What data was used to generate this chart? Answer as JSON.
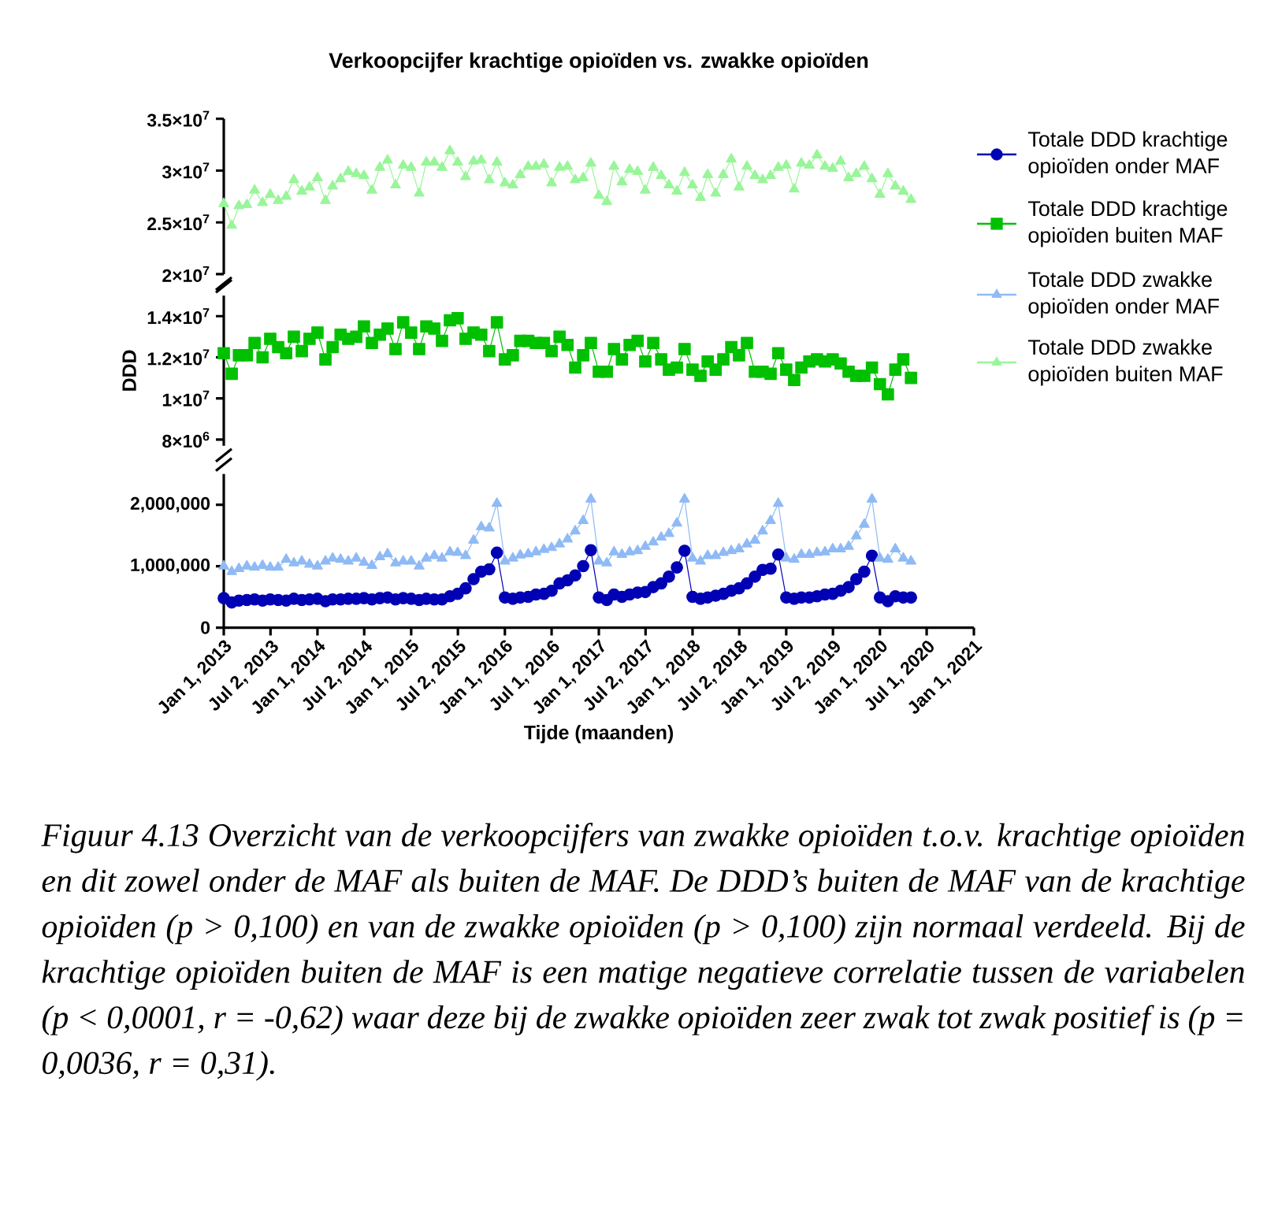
{
  "chart_data": [
    {
      "type": "line",
      "title": "Verkoopcijfer krachtige opioïden vs. zwakke opioïden",
      "legend": "right",
      "tick_labels": "y",
      "x": [
        "2013-01",
        "2013-02",
        "2013-03",
        "2013-04",
        "2013-05",
        "2013-06",
        "2013-07",
        "2013-08",
        "2013-09",
        "2013-10",
        "2013-11",
        "2013-12",
        "2014-01",
        "2014-02",
        "2014-03",
        "2014-04",
        "2014-05",
        "2014-06",
        "2014-07",
        "2014-08",
        "2014-09",
        "2014-10",
        "2014-11",
        "2014-12",
        "2015-01",
        "2015-02",
        "2015-03",
        "2015-04",
        "2015-05",
        "2015-06",
        "2015-07",
        "2015-08",
        "2015-09",
        "2015-10",
        "2015-11",
        "2015-12",
        "2016-01",
        "2016-02",
        "2016-03",
        "2016-04",
        "2016-05",
        "2016-06",
        "2016-07",
        "2016-08",
        "2016-09",
        "2016-10",
        "2016-11",
        "2016-12",
        "2017-01",
        "2017-02",
        "2017-03",
        "2017-04",
        "2017-05",
        "2017-06",
        "2017-07",
        "2017-08",
        "2017-09",
        "2017-10",
        "2017-11",
        "2017-12",
        "2018-01",
        "2018-02",
        "2018-03",
        "2018-04",
        "2018-05",
        "2018-06",
        "2018-07",
        "2018-08",
        "2018-09",
        "2018-10",
        "2018-11",
        "2018-12",
        "2019-01",
        "2019-02",
        "2019-03",
        "2019-04",
        "2019-05",
        "2019-06",
        "2019-07",
        "2019-08",
        "2019-09",
        "2019-10",
        "2019-11",
        "2019-12",
        "2020-01",
        "2020-02",
        "2020-03",
        "2020-04",
        "2020-05"
      ],
      "xlim": [
        "2013-01-01",
        "2021-01-01"
      ],
      "ylim": [
        20000000,
        35000000
      ],
      "yticks": [
        {
          "value": 20000000,
          "label": "2×10$^{7}$"
        },
        {
          "value": 25000000,
          "label": "2.5×10$^{7}$"
        },
        {
          "value": 30000000,
          "label": "3×10$^{7}$"
        },
        {
          "value": 35000000,
          "label": "3.5×10$^{7}$"
        }
      ],
      "series": [
        {
          "name": "Totale DDD zwakke opioïden buiten MAF",
          "color": "#99f599",
          "marker": "triangle",
          "values": [
            26800000,
            24700000,
            26600000,
            26700000,
            28100000,
            26900000,
            27700000,
            27100000,
            27500000,
            29100000,
            28000000,
            28400000,
            29300000,
            27100000,
            28500000,
            29200000,
            29900000,
            29700000,
            29500000,
            28100000,
            30300000,
            31000000,
            28600000,
            30500000,
            30300000,
            27800000,
            30800000,
            30800000,
            30300000,
            31900000,
            30800000,
            29400000,
            30900000,
            31000000,
            29100000,
            30800000,
            28800000,
            28600000,
            29600000,
            30400000,
            30400000,
            30600000,
            28800000,
            30300000,
            30400000,
            29100000,
            29300000,
            30700000,
            27600000,
            27000000,
            30400000,
            28900000,
            30100000,
            29900000,
            28100000,
            30300000,
            29500000,
            28600000,
            28000000,
            29800000,
            28600000,
            27400000,
            29600000,
            27800000,
            29600000,
            31100000,
            28400000,
            30400000,
            29500000,
            29100000,
            29500000,
            30300000,
            30500000,
            28200000,
            30700000,
            30500000,
            31500000,
            30400000,
            30200000,
            30900000,
            29300000,
            29700000,
            30400000,
            29200000,
            27700000,
            29700000,
            28500000,
            28000000,
            27200000
          ]
        }
      ]
    },
    {
      "type": "line",
      "ylabel": "DDD",
      "legend": "right",
      "tick_labels": "y",
      "x": [
        "2013-01",
        "2013-02",
        "2013-03",
        "2013-04",
        "2013-05",
        "2013-06",
        "2013-07",
        "2013-08",
        "2013-09",
        "2013-10",
        "2013-11",
        "2013-12",
        "2014-01",
        "2014-02",
        "2014-03",
        "2014-04",
        "2014-05",
        "2014-06",
        "2014-07",
        "2014-08",
        "2014-09",
        "2014-10",
        "2014-11",
        "2014-12",
        "2015-01",
        "2015-02",
        "2015-03",
        "2015-04",
        "2015-05",
        "2015-06",
        "2015-07",
        "2015-08",
        "2015-09",
        "2015-10",
        "2015-11",
        "2015-12",
        "2016-01",
        "2016-02",
        "2016-03",
        "2016-04",
        "2016-05",
        "2016-06",
        "2016-07",
        "2016-08",
        "2016-09",
        "2016-10",
        "2016-11",
        "2016-12",
        "2017-01",
        "2017-02",
        "2017-03",
        "2017-04",
        "2017-05",
        "2017-06",
        "2017-07",
        "2017-08",
        "2017-09",
        "2017-10",
        "2017-11",
        "2017-12",
        "2018-01",
        "2018-02",
        "2018-03",
        "2018-04",
        "2018-05",
        "2018-06",
        "2018-07",
        "2018-08",
        "2018-09",
        "2018-10",
        "2018-11",
        "2018-12",
        "2019-01",
        "2019-02",
        "2019-03",
        "2019-04",
        "2019-05",
        "2019-06",
        "2019-07",
        "2019-08",
        "2019-09",
        "2019-10",
        "2019-11",
        "2019-12",
        "2020-01",
        "2020-02",
        "2020-03",
        "2020-04",
        "2020-05"
      ],
      "xlim": [
        "2013-01-01",
        "2021-01-01"
      ],
      "ylim": [
        7700000,
        15000000
      ],
      "yticks": [
        {
          "value": 8000000,
          "label": "8×10$^{6}$"
        },
        {
          "value": 10000000,
          "label": "1×10$^{7}$"
        },
        {
          "value": 12000000,
          "label": "1.2×10$^{7}$"
        },
        {
          "value": 14000000,
          "label": "1.4×10$^{7}$"
        }
      ],
      "series": [
        {
          "name": "Totale DDD krachtige opioïden buiten MAF",
          "color": "#00c000",
          "marker": "square",
          "values": [
            12200000,
            11200000,
            12100000,
            12100000,
            12700000,
            12000000,
            12900000,
            12500000,
            12200000,
            13000000,
            12300000,
            12900000,
            13200000,
            11900000,
            12500000,
            13100000,
            12900000,
            13000000,
            13500000,
            12700000,
            13100000,
            13400000,
            12400000,
            13700000,
            13200000,
            12400000,
            13500000,
            13400000,
            12800000,
            13800000,
            13900000,
            12900000,
            13200000,
            13100000,
            12300000,
            13700000,
            11900000,
            12100000,
            12800000,
            12800000,
            12700000,
            12700000,
            12300000,
            13000000,
            12600000,
            11500000,
            12100000,
            12700000,
            11300000,
            11300000,
            12400000,
            11900000,
            12600000,
            12800000,
            11800000,
            12700000,
            11900000,
            11400000,
            11500000,
            12400000,
            11400000,
            11100000,
            11800000,
            11400000,
            11900000,
            12500000,
            12100000,
            12700000,
            11300000,
            11300000,
            11200000,
            12200000,
            11400000,
            10900000,
            11500000,
            11800000,
            11900000,
            11800000,
            11900000,
            11700000,
            11300000,
            11100000,
            11100000,
            11500000,
            10700000,
            10200000,
            11400000,
            11900000,
            11000000
          ]
        }
      ]
    },
    {
      "type": "line",
      "xlabel": "Tijde (maanden)",
      "legend": "right",
      "annotations": [
        "Figuur 4.13 Overzicht van de verkoopcijfers van zwakke opioïden t.o.v. krachtige opioïden en dit zowel onder de MAF als buiten de MAF. De DDD’s buiten de MAF van de krachtige opioïden (p > 0,100) en van de zwakke opioïden (p > 0,100) zijn normaal verdeeld. Bij de krachtige opioïden buiten de MAF is een matige negatieve correlatie tussen de variabelen (p < 0,0001, r = -0,62) waar deze bij de zwakke opioïden zeer zwak tot zwak positief is (p = 0,0036, r = 0,31)."
      ],
      "x": [
        "2013-01",
        "2013-02",
        "2013-03",
        "2013-04",
        "2013-05",
        "2013-06",
        "2013-07",
        "2013-08",
        "2013-09",
        "2013-10",
        "2013-11",
        "2013-12",
        "2014-01",
        "2014-02",
        "2014-03",
        "2014-04",
        "2014-05",
        "2014-06",
        "2014-07",
        "2014-08",
        "2014-09",
        "2014-10",
        "2014-11",
        "2014-12",
        "2015-01",
        "2015-02",
        "2015-03",
        "2015-04",
        "2015-05",
        "2015-06",
        "2015-07",
        "2015-08",
        "2015-09",
        "2015-10",
        "2015-11",
        "2015-12",
        "2016-01",
        "2016-02",
        "2016-03",
        "2016-04",
        "2016-05",
        "2016-06",
        "2016-07",
        "2016-08",
        "2016-09",
        "2016-10",
        "2016-11",
        "2016-12",
        "2017-01",
        "2017-02",
        "2017-03",
        "2017-04",
        "2017-05",
        "2017-06",
        "2017-07",
        "2017-08",
        "2017-09",
        "2017-10",
        "2017-11",
        "2017-12",
        "2018-01",
        "2018-02",
        "2018-03",
        "2018-04",
        "2018-05",
        "2018-06",
        "2018-07",
        "2018-08",
        "2018-09",
        "2018-10",
        "2018-11",
        "2018-12",
        "2019-01",
        "2019-02",
        "2019-03",
        "2019-04",
        "2019-05",
        "2019-06",
        "2019-07",
        "2019-08",
        "2019-09",
        "2019-10",
        "2019-11",
        "2019-12",
        "2020-01",
        "2020-02",
        "2020-03",
        "2020-04",
        "2020-05"
      ],
      "xlim": [
        "2013-01-01",
        "2021-01-01"
      ],
      "xticks": [
        {
          "value": "2013-01-01",
          "label": "Jan 1, 2013"
        },
        {
          "value": "2013-07-02",
          "label": "Jul 2, 2013"
        },
        {
          "value": "2014-01-01",
          "label": "Jan 1, 2014"
        },
        {
          "value": "2014-07-02",
          "label": "Jul 2, 2014"
        },
        {
          "value": "2015-01-01",
          "label": "Jan 1, 2015"
        },
        {
          "value": "2015-07-02",
          "label": "Jul 2, 2015"
        },
        {
          "value": "2016-01-01",
          "label": "Jan 1, 2016"
        },
        {
          "value": "2016-07-01",
          "label": "Jul 1, 2016"
        },
        {
          "value": "2017-01-01",
          "label": "Jan 1, 2017"
        },
        {
          "value": "2017-07-02",
          "label": "Jul 2, 2017"
        },
        {
          "value": "2018-01-01",
          "label": "Jan 1, 2018"
        },
        {
          "value": "2018-07-02",
          "label": "Jul 2, 2018"
        },
        {
          "value": "2019-01-01",
          "label": "Jan 1, 2019"
        },
        {
          "value": "2019-07-02",
          "label": "Jul 2, 2019"
        },
        {
          "value": "2020-01-01",
          "label": "Jan 1, 2020"
        },
        {
          "value": "2020-07-01",
          "label": "Jul 1, 2020"
        },
        {
          "value": "2021-01-01",
          "label": "Jan 1, 2021"
        }
      ],
      "ylim": [
        0,
        2500000
      ],
      "yticks": [
        {
          "value": 0,
          "label": "0"
        },
        {
          "value": 1000000,
          "label": "1,000,000"
        },
        {
          "value": 2000000,
          "label": "2,000,000"
        }
      ],
      "series": [
        {
          "name": "Totale DDD krachtige opioïden onder MAF",
          "color": "#0000b4",
          "marker": "circle",
          "values": [
            480000,
            410000,
            440000,
            450000,
            460000,
            440000,
            460000,
            450000,
            440000,
            470000,
            450000,
            460000,
            470000,
            430000,
            460000,
            460000,
            470000,
            470000,
            480000,
            460000,
            480000,
            490000,
            460000,
            480000,
            470000,
            450000,
            470000,
            460000,
            460000,
            510000,
            550000,
            640000,
            790000,
            910000,
            950000,
            1220000,
            490000,
            470000,
            490000,
            500000,
            540000,
            550000,
            600000,
            720000,
            770000,
            850000,
            1000000,
            1260000,
            490000,
            450000,
            540000,
            500000,
            540000,
            570000,
            580000,
            660000,
            720000,
            830000,
            980000,
            1250000,
            500000,
            470000,
            490000,
            520000,
            550000,
            600000,
            640000,
            720000,
            830000,
            940000,
            960000,
            1190000,
            490000,
            470000,
            490000,
            490000,
            510000,
            540000,
            550000,
            600000,
            660000,
            790000,
            910000,
            1170000,
            490000,
            430000,
            510000,
            490000,
            490000
          ]
        },
        {
          "name": "Totale DDD zwakke opioïden onder MAF",
          "color": "#8fbaf5",
          "marker": "triangle",
          "values": [
            1000000,
            910000,
            960000,
            1000000,
            980000,
            1010000,
            980000,
            980000,
            1110000,
            1050000,
            1080000,
            1030000,
            1000000,
            1080000,
            1130000,
            1110000,
            1080000,
            1130000,
            1060000,
            1010000,
            1150000,
            1200000,
            1050000,
            1080000,
            1080000,
            1000000,
            1130000,
            1170000,
            1130000,
            1230000,
            1220000,
            1170000,
            1420000,
            1640000,
            1620000,
            2020000,
            1080000,
            1130000,
            1180000,
            1200000,
            1230000,
            1270000,
            1300000,
            1360000,
            1440000,
            1570000,
            1740000,
            2090000,
            1080000,
            1050000,
            1230000,
            1190000,
            1230000,
            1250000,
            1320000,
            1390000,
            1470000,
            1530000,
            1700000,
            2090000,
            1130000,
            1080000,
            1170000,
            1170000,
            1220000,
            1250000,
            1280000,
            1360000,
            1420000,
            1570000,
            1740000,
            2020000,
            1130000,
            1110000,
            1190000,
            1190000,
            1220000,
            1230000,
            1280000,
            1280000,
            1320000,
            1490000,
            1680000,
            2090000,
            1130000,
            1110000,
            1280000,
            1130000,
            1080000
          ]
        }
      ]
    }
  ]
}
